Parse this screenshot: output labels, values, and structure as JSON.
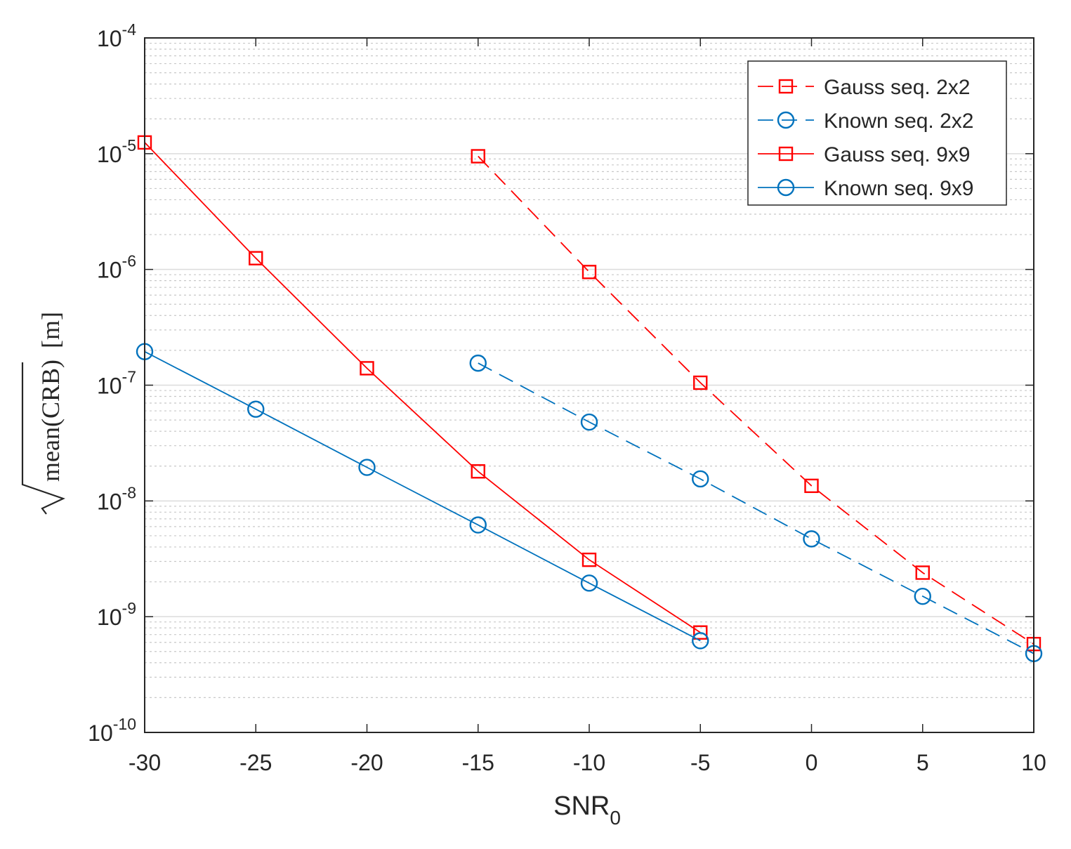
{
  "chart_data": {
    "type": "line",
    "yscale": "log",
    "xlabel": "SNR",
    "xlabel_sub": "0",
    "ylabel": "mean(CRB)",
    "ylabel_unit": "[m]",
    "xlim": [
      -30,
      10
    ],
    "ylim": [
      1e-10,
      0.0001
    ],
    "xticks": [
      -30,
      -25,
      -20,
      -15,
      -10,
      -5,
      0,
      5,
      10
    ],
    "xtick_labels": [
      "-30",
      "-25",
      "-20",
      "-15",
      "-10",
      "-5",
      "0",
      "5",
      "10"
    ],
    "ytick_exponents": [
      "-10",
      "-9",
      "-8",
      "-7",
      "-6",
      "-5",
      "-4"
    ],
    "ytick_base": "10",
    "grid": true,
    "legend_position": "top-right",
    "series": [
      {
        "name": "Gauss seq. 2x2",
        "color": "#ff0000",
        "marker": "square",
        "dash": true,
        "x": [
          -15,
          -10,
          -5,
          0,
          5,
          10
        ],
        "y": [
          9.5e-06,
          9.5e-07,
          1.05e-07,
          1.35e-08,
          2.4e-09,
          5.8e-10
        ]
      },
      {
        "name": "Known seq. 2x2",
        "color": "#0072bd",
        "marker": "circle",
        "dash": true,
        "x": [
          -15,
          -10,
          -5,
          0,
          5,
          10
        ],
        "y": [
          1.55e-07,
          4.8e-08,
          1.55e-08,
          4.7e-09,
          1.5e-09,
          4.8e-10
        ]
      },
      {
        "name": "Gauss seq. 9x9",
        "color": "#ff0000",
        "marker": "square",
        "dash": false,
        "x": [
          -30,
          -25,
          -20,
          -15,
          -10,
          -5
        ],
        "y": [
          1.25e-05,
          1.25e-06,
          1.4e-07,
          1.8e-08,
          3.1e-09,
          7.3e-10
        ]
      },
      {
        "name": "Known seq. 9x9",
        "color": "#0072bd",
        "marker": "circle",
        "dash": false,
        "x": [
          -30,
          -25,
          -20,
          -15,
          -10,
          -5
        ],
        "y": [
          1.95e-07,
          6.2e-08,
          1.95e-08,
          6.2e-09,
          1.95e-09,
          6.2e-10
        ]
      }
    ]
  }
}
